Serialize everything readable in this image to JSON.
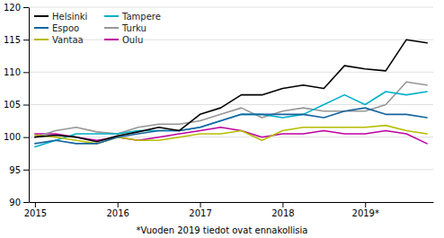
{
  "chart_data": {
    "type": "line",
    "categories": [
      "2015",
      null,
      null,
      null,
      "2016",
      null,
      null,
      null,
      "2017",
      null,
      null,
      null,
      "2018",
      null,
      null,
      null,
      "2019*",
      null,
      null,
      null
    ],
    "series": [
      {
        "name": "Helsinki",
        "color": "#000000",
        "values": [
          100.0,
          100.3,
          100.0,
          99.3,
          100.2,
          100.8,
          101.5,
          101.0,
          103.5,
          104.5,
          106.5,
          106.5,
          107.5,
          108.0,
          107.5,
          111.0,
          110.5,
          110.2,
          115.0,
          114.5
        ]
      },
      {
        "name": "Espoo",
        "color": "#1464a0",
        "values": [
          99.0,
          99.5,
          99.0,
          99.0,
          100.0,
          100.5,
          101.0,
          101.0,
          101.5,
          102.5,
          103.5,
          103.5,
          103.5,
          103.5,
          103.0,
          104.0,
          104.5,
          103.5,
          103.5,
          103.0
        ]
      },
      {
        "name": "Vantaa",
        "color": "#b5bd00",
        "values": [
          100.3,
          100.0,
          99.5,
          99.0,
          100.0,
          99.5,
          99.5,
          100.0,
          100.5,
          100.5,
          101.0,
          99.5,
          101.0,
          101.5,
          101.5,
          101.5,
          101.5,
          101.8,
          101.0,
          100.5
        ]
      },
      {
        "name": "Tampere",
        "color": "#00b0c8",
        "values": [
          98.5,
          99.5,
          100.5,
          100.5,
          100.5,
          101.0,
          101.0,
          101.0,
          101.5,
          102.5,
          103.5,
          103.5,
          103.0,
          103.5,
          105.0,
          106.5,
          105.0,
          107.0,
          106.5,
          107.0
        ]
      },
      {
        "name": "Turku",
        "color": "#969696",
        "values": [
          100.0,
          101.0,
          101.5,
          100.8,
          100.5,
          101.5,
          102.0,
          102.0,
          102.5,
          103.5,
          104.5,
          103.0,
          104.0,
          104.5,
          104.0,
          104.0,
          104.0,
          105.0,
          108.5,
          108.0
        ]
      },
      {
        "name": "Oulu",
        "color": "#be00a0",
        "values": [
          100.5,
          100.5,
          100.0,
          99.5,
          100.0,
          99.5,
          100.0,
          100.5,
          101.0,
          101.5,
          101.0,
          100.0,
          100.5,
          100.5,
          101.0,
          100.5,
          100.5,
          101.0,
          100.5,
          99.0
        ]
      }
    ],
    "ylim": [
      90,
      120
    ],
    "yticks": [
      90,
      95,
      100,
      105,
      110,
      115,
      120
    ],
    "grid": true,
    "legend": "upper left",
    "annotations": [
      "*Vuoden 2019 tiedot ovat ennakollisia"
    ]
  }
}
